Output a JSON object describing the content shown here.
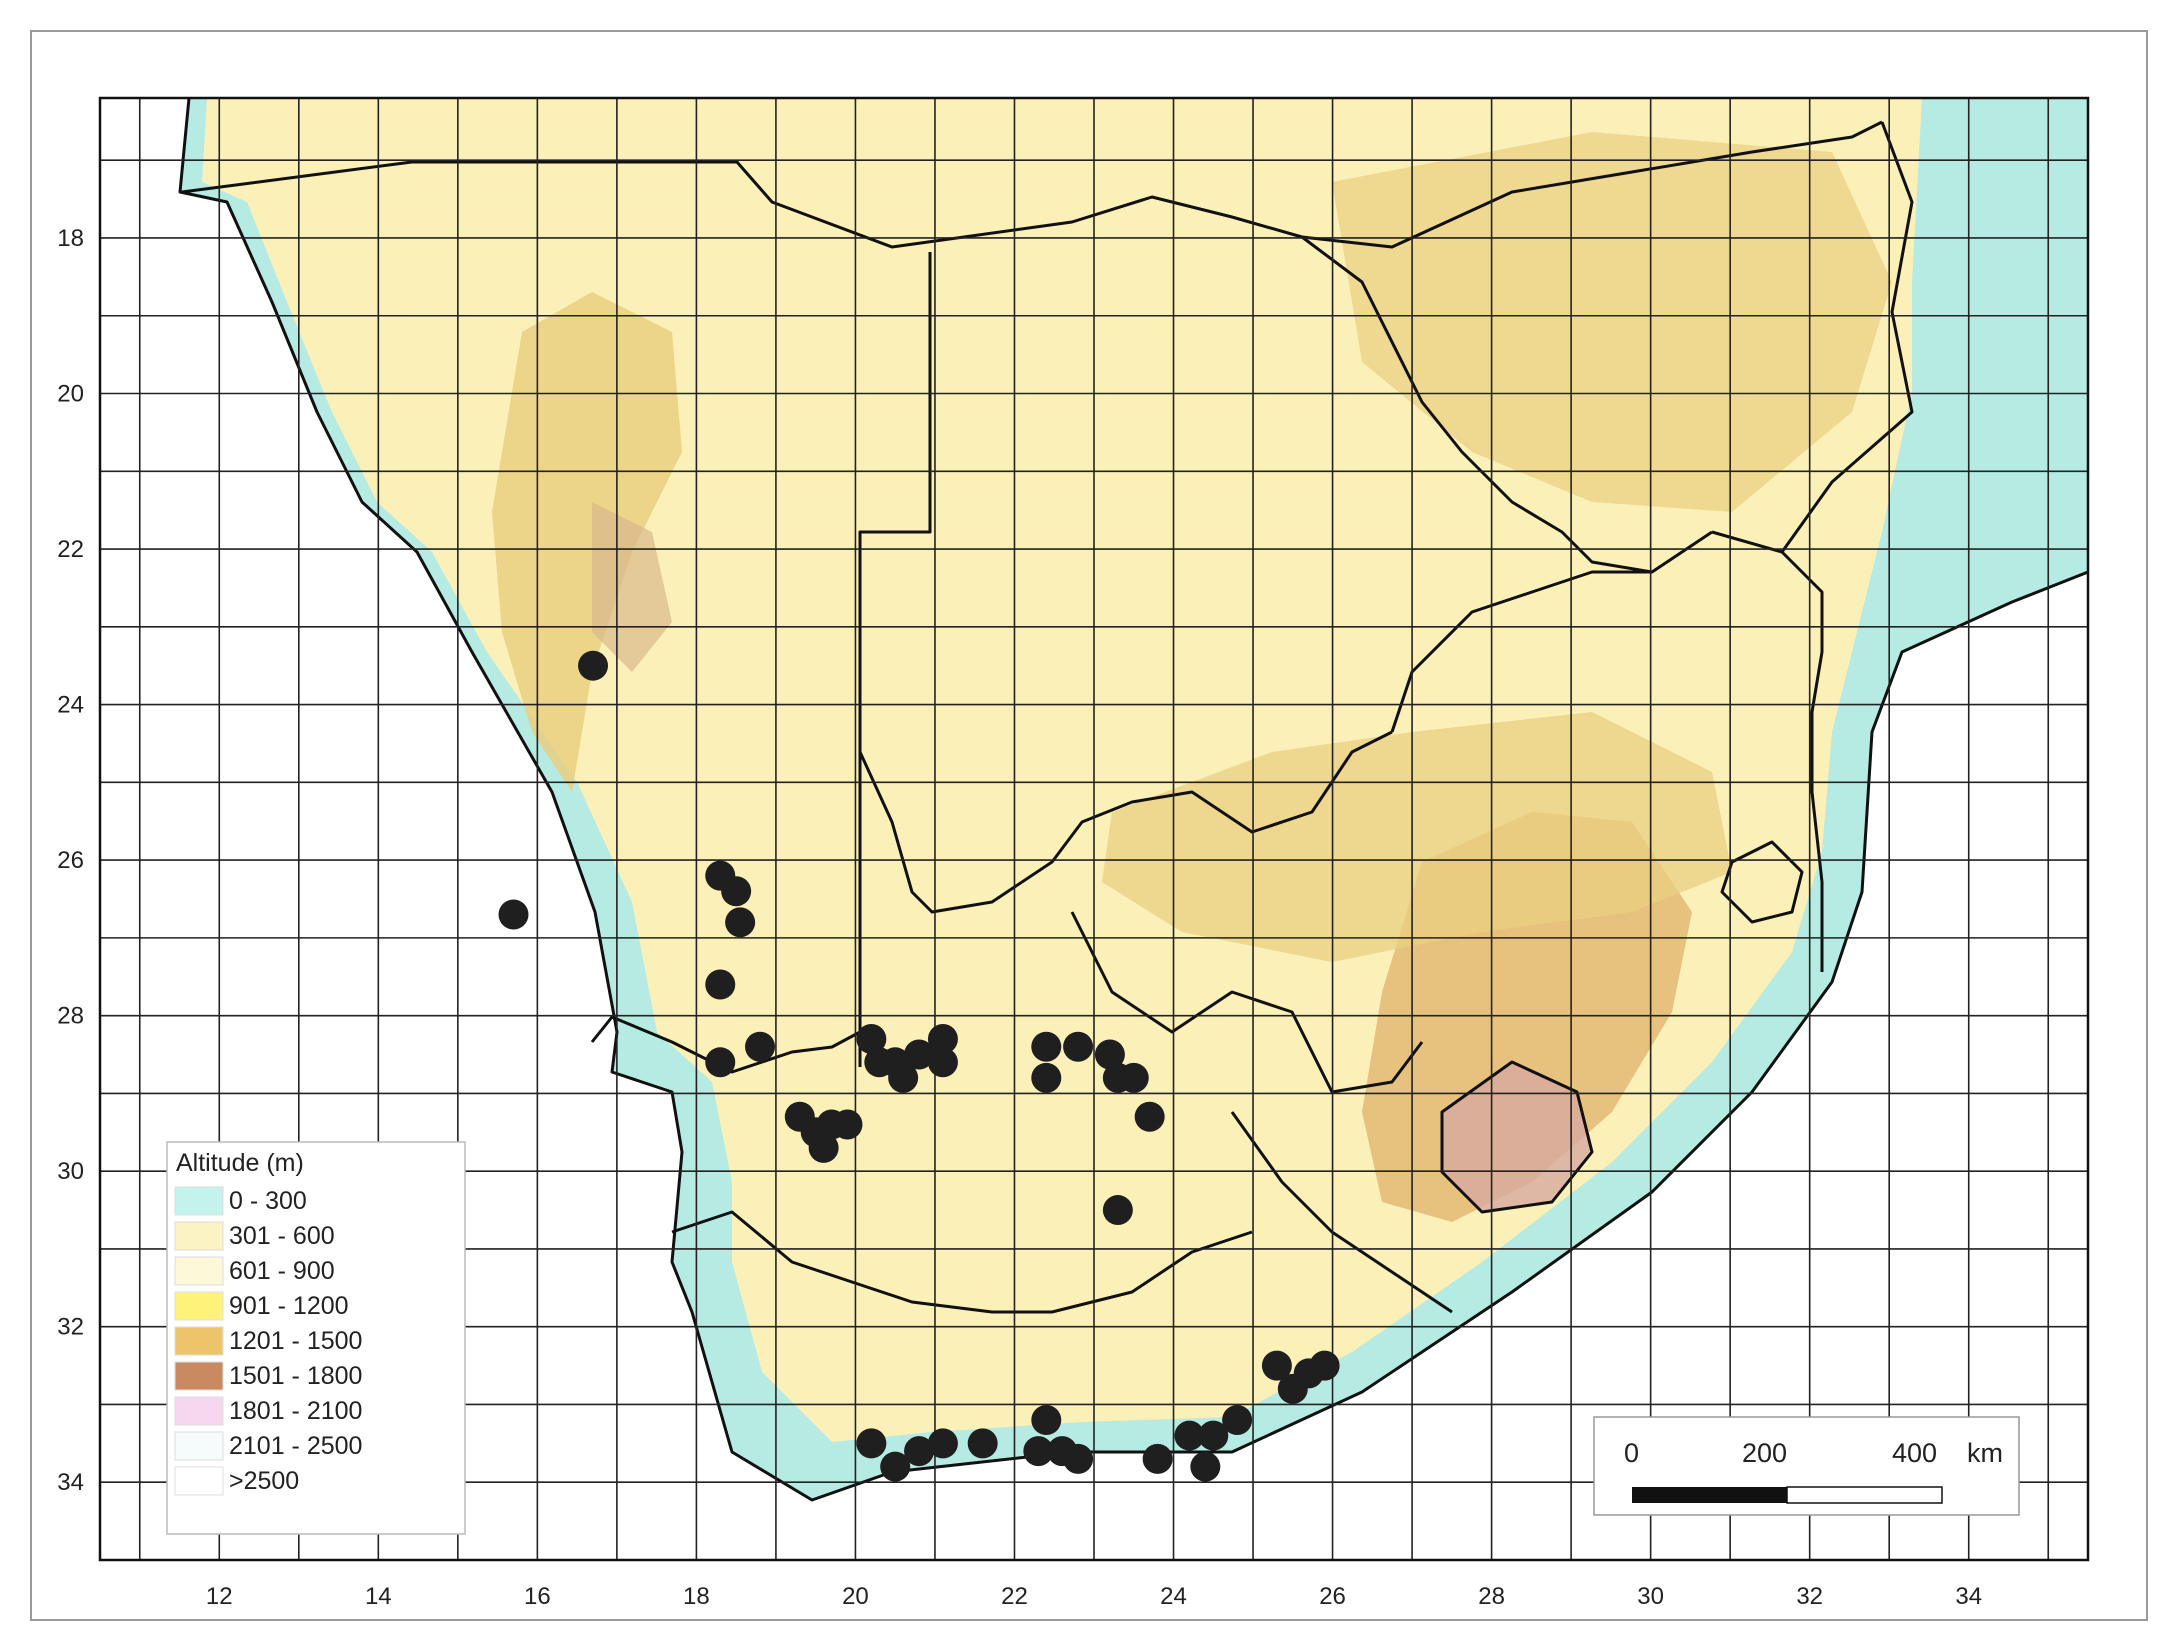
{
  "map": {
    "lon_range": [
      10.5,
      35.5
    ],
    "lat_range": [
      16.2,
      35.0
    ],
    "x_ticks": [
      12,
      14,
      16,
      18,
      20,
      22,
      24,
      26,
      28,
      30,
      32,
      34
    ],
    "y_ticks": [
      18,
      20,
      22,
      24,
      26,
      28,
      30,
      32,
      34
    ],
    "grid_spacing_deg": 1
  },
  "legend": {
    "title": "Altitude (m)",
    "items": [
      {
        "label": "0 - 300",
        "color": "#c4f2ec"
      },
      {
        "label": "301 - 600",
        "color": "#fbf3c4"
      },
      {
        "label": "601 - 900",
        "color": "#fdf8d8"
      },
      {
        "label": "901 - 1200",
        "color": "#fff27a"
      },
      {
        "label": "1201 - 1500",
        "color": "#eec46a"
      },
      {
        "label": "1501 - 1800",
        "color": "#c98a62"
      },
      {
        "label": "1801 - 2100",
        "color": "#f7d7ef"
      },
      {
        "label": "2101 - 2500",
        "color": "#f6fbfb"
      },
      {
        "label": ">2500",
        "color": "#ffffff"
      }
    ]
  },
  "scale_bar": {
    "labels": [
      "0",
      "200",
      "400"
    ],
    "unit": "km"
  },
  "colors": {
    "ocean": "#ffffff",
    "coast": "#b5ebe2",
    "plateau": "#fbf0b8",
    "highland": "#e9cf80",
    "grid": "#222222",
    "border": "#111111",
    "point": "#1f1f1f"
  },
  "occurrence_points": [
    {
      "lon": 16.7,
      "lat": 23.5
    },
    {
      "lon": 15.7,
      "lat": 26.7
    },
    {
      "lon": 18.3,
      "lat": 26.2
    },
    {
      "lon": 18.5,
      "lat": 26.4
    },
    {
      "lon": 18.55,
      "lat": 26.8
    },
    {
      "lon": 18.3,
      "lat": 27.6
    },
    {
      "lon": 18.3,
      "lat": 28.6
    },
    {
      "lon": 18.8,
      "lat": 28.4
    },
    {
      "lon": 19.3,
      "lat": 29.3
    },
    {
      "lon": 19.5,
      "lat": 29.5
    },
    {
      "lon": 19.7,
      "lat": 29.4
    },
    {
      "lon": 19.6,
      "lat": 29.7
    },
    {
      "lon": 19.9,
      "lat": 29.4
    },
    {
      "lon": 20.2,
      "lat": 28.3
    },
    {
      "lon": 20.3,
      "lat": 28.6
    },
    {
      "lon": 20.5,
      "lat": 28.6
    },
    {
      "lon": 20.6,
      "lat": 28.8
    },
    {
      "lon": 20.8,
      "lat": 28.5
    },
    {
      "lon": 21.1,
      "lat": 28.3
    },
    {
      "lon": 21.1,
      "lat": 28.6
    },
    {
      "lon": 22.4,
      "lat": 28.4
    },
    {
      "lon": 22.4,
      "lat": 28.8
    },
    {
      "lon": 22.8,
      "lat": 28.4
    },
    {
      "lon": 23.2,
      "lat": 28.5
    },
    {
      "lon": 23.3,
      "lat": 28.8
    },
    {
      "lon": 23.5,
      "lat": 28.8
    },
    {
      "lon": 23.7,
      "lat": 29.3
    },
    {
      "lon": 23.3,
      "lat": 30.5
    },
    {
      "lon": 25.3,
      "lat": 32.5
    },
    {
      "lon": 25.5,
      "lat": 32.8
    },
    {
      "lon": 25.7,
      "lat": 32.6
    },
    {
      "lon": 25.9,
      "lat": 32.5
    },
    {
      "lon": 20.2,
      "lat": 33.5
    },
    {
      "lon": 20.5,
      "lat": 33.8
    },
    {
      "lon": 20.8,
      "lat": 33.6
    },
    {
      "lon": 21.1,
      "lat": 33.5
    },
    {
      "lon": 21.6,
      "lat": 33.5
    },
    {
      "lon": 22.3,
      "lat": 33.6
    },
    {
      "lon": 22.4,
      "lat": 33.2
    },
    {
      "lon": 22.6,
      "lat": 33.6
    },
    {
      "lon": 22.8,
      "lat": 33.7
    },
    {
      "lon": 23.8,
      "lat": 33.7
    },
    {
      "lon": 24.2,
      "lat": 33.4
    },
    {
      "lon": 24.4,
      "lat": 33.8
    },
    {
      "lon": 24.5,
      "lat": 33.4
    },
    {
      "lon": 24.8,
      "lat": 33.2
    }
  ]
}
